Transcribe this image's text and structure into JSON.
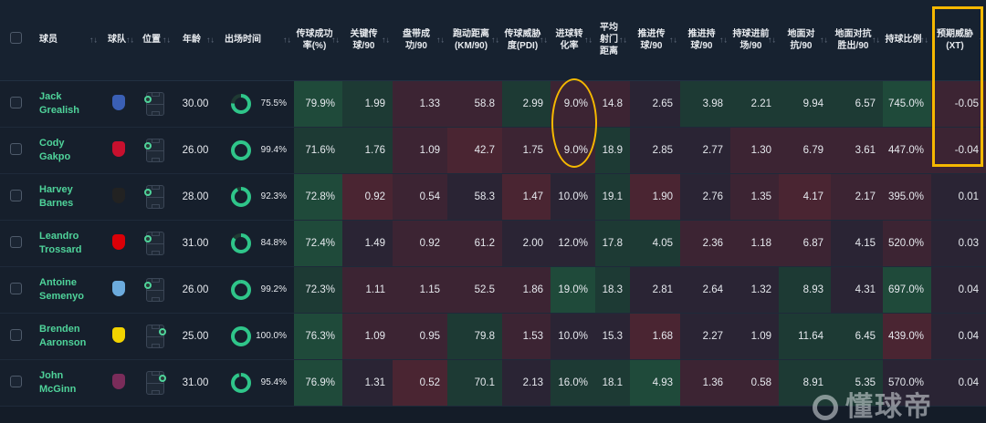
{
  "columns": [
    {
      "key": "select",
      "label": ""
    },
    {
      "key": "player",
      "label": "球员"
    },
    {
      "key": "team",
      "label": "球队"
    },
    {
      "key": "position",
      "label": "位置"
    },
    {
      "key": "age",
      "label": "年龄"
    },
    {
      "key": "minutes",
      "label": "出场时间"
    },
    {
      "key": "pass",
      "label": "传球成功率(%)"
    },
    {
      "key": "kp",
      "label": "关键传球/90"
    },
    {
      "key": "drib",
      "label": "盘带成功/90"
    },
    {
      "key": "dist",
      "label": "跑动距离(KM/90)"
    },
    {
      "key": "pdi",
      "label": "传球威胁度(PDI)"
    },
    {
      "key": "conv",
      "label": "进球转化率"
    },
    {
      "key": "shotdist",
      "label": "平均射门距离"
    },
    {
      "key": "pp",
      "label": "推进传球/90"
    },
    {
      "key": "pc",
      "label": "推进持球/90"
    },
    {
      "key": "cf",
      "label": "持球进前场/90"
    },
    {
      "key": "gd",
      "label": "地面对抗/90"
    },
    {
      "key": "gdw",
      "label": "地面对抗胜出/90"
    },
    {
      "key": "poss",
      "label": "持球比例"
    },
    {
      "key": "xt",
      "label": "预期威胁(XT)"
    }
  ],
  "sort": {
    "column": "xt",
    "direction": "ascending",
    "icon": "arrow-up-icon"
  },
  "colors": {
    "accent": "#4fd39a",
    "annotation": "#f5b800"
  },
  "rows": [
    {
      "first": "Jack",
      "last": "Grealish",
      "team": "Everton",
      "crest": "#3a5fb5",
      "side": "left",
      "age": "30.00",
      "minutes": "75.5%",
      "min_pct": 75.5,
      "stats": [
        "79.9%",
        "1.99",
        "1.33",
        "58.8",
        "2.99",
        "9.0%",
        "14.8",
        "2.65",
        "3.98",
        "2.21",
        "9.94",
        "6.57",
        "745.0%",
        "-0.05"
      ],
      "heat": [
        "G2",
        "G1",
        "R1",
        "R1",
        "G1",
        "R1",
        "R1",
        "N",
        "G1",
        "G1",
        "G1",
        "G1",
        "G2",
        "R1"
      ]
    },
    {
      "first": "Cody",
      "last": "Gakpo",
      "team": "Liverpool",
      "crest": "#c8102e",
      "side": "left",
      "age": "26.00",
      "minutes": "99.4%",
      "min_pct": 99.4,
      "stats": [
        "71.6%",
        "1.76",
        "1.09",
        "42.7",
        "1.75",
        "9.0%",
        "18.9",
        "2.85",
        "2.77",
        "1.30",
        "6.79",
        "3.61",
        "447.0%",
        "-0.04"
      ],
      "heat": [
        "G1",
        "G1",
        "R1",
        "R2",
        "R1",
        "R1",
        "G1",
        "N",
        "N",
        "R1",
        "R1",
        "R1",
        "R1",
        "R1"
      ]
    },
    {
      "first": "Harvey",
      "last": "Barnes",
      "team": "Newcastle",
      "crest": "#222222",
      "side": "left",
      "age": "28.00",
      "minutes": "92.3%",
      "min_pct": 92.3,
      "stats": [
        "72.8%",
        "0.92",
        "0.54",
        "58.3",
        "1.47",
        "10.0%",
        "19.1",
        "1.90",
        "2.76",
        "1.35",
        "4.17",
        "2.17",
        "395.0%",
        "0.01"
      ],
      "heat": [
        "G2",
        "R2",
        "R1",
        "N",
        "R2",
        "N",
        "G1",
        "R2",
        "N",
        "R1",
        "R2",
        "R1",
        "R1",
        "N"
      ]
    },
    {
      "first": "Leandro",
      "last": "Trossard",
      "team": "Arsenal",
      "crest": "#db0007",
      "side": "left",
      "age": "31.00",
      "minutes": "84.8%",
      "min_pct": 84.8,
      "stats": [
        "72.4%",
        "1.49",
        "0.92",
        "61.2",
        "2.00",
        "12.0%",
        "17.8",
        "4.05",
        "2.36",
        "1.18",
        "6.87",
        "4.15",
        "520.0%",
        "0.03"
      ],
      "heat": [
        "G2",
        "N",
        "R1",
        "R1",
        "N",
        "N",
        "G1",
        "G1",
        "R1",
        "R1",
        "R1",
        "N",
        "R1",
        "N"
      ]
    },
    {
      "first": "Antoine",
      "last": "Semenyo",
      "team": "Manchester City",
      "crest": "#6cabdd",
      "side": "left",
      "age": "26.00",
      "minutes": "99.2%",
      "min_pct": 99.2,
      "stats": [
        "72.3%",
        "1.11",
        "1.15",
        "52.5",
        "1.86",
        "19.0%",
        "18.3",
        "2.81",
        "2.64",
        "1.32",
        "8.93",
        "4.31",
        "697.0%",
        "0.04"
      ],
      "heat": [
        "G1",
        "R1",
        "R1",
        "R1",
        "R1",
        "G2",
        "G1",
        "N",
        "N",
        "N",
        "G1",
        "N",
        "G2",
        "N"
      ]
    },
    {
      "first": "Brenden",
      "last": "Aaronson",
      "team": "Leeds",
      "crest": "#f2d300",
      "side": "right",
      "age": "25.00",
      "minutes": "100.0%",
      "min_pct": 100,
      "stats": [
        "76.3%",
        "1.09",
        "0.95",
        "79.8",
        "1.53",
        "10.0%",
        "15.3",
        "1.68",
        "2.27",
        "1.09",
        "11.64",
        "6.45",
        "439.0%",
        "0.04"
      ],
      "heat": [
        "G2",
        "R1",
        "R1",
        "G1",
        "R1",
        "N",
        "N",
        "R2",
        "N",
        "N",
        "G1",
        "G1",
        "R2",
        "N"
      ]
    },
    {
      "first": "John",
      "last": "McGinn",
      "team": "Aston Villa",
      "crest": "#7a2c5a",
      "side": "right",
      "age": "31.00",
      "minutes": "95.4%",
      "min_pct": 95.4,
      "stats": [
        "76.9%",
        "1.31",
        "0.52",
        "70.1",
        "2.13",
        "16.0%",
        "18.1",
        "4.93",
        "1.36",
        "0.58",
        "8.91",
        "5.35",
        "570.0%",
        "0.04"
      ],
      "heat": [
        "G2",
        "N",
        "R2",
        "G1",
        "N",
        "G1",
        "G1",
        "G2",
        "R1",
        "R1",
        "G1",
        "G1",
        "N",
        "N"
      ]
    }
  ],
  "watermark": "懂球帝"
}
